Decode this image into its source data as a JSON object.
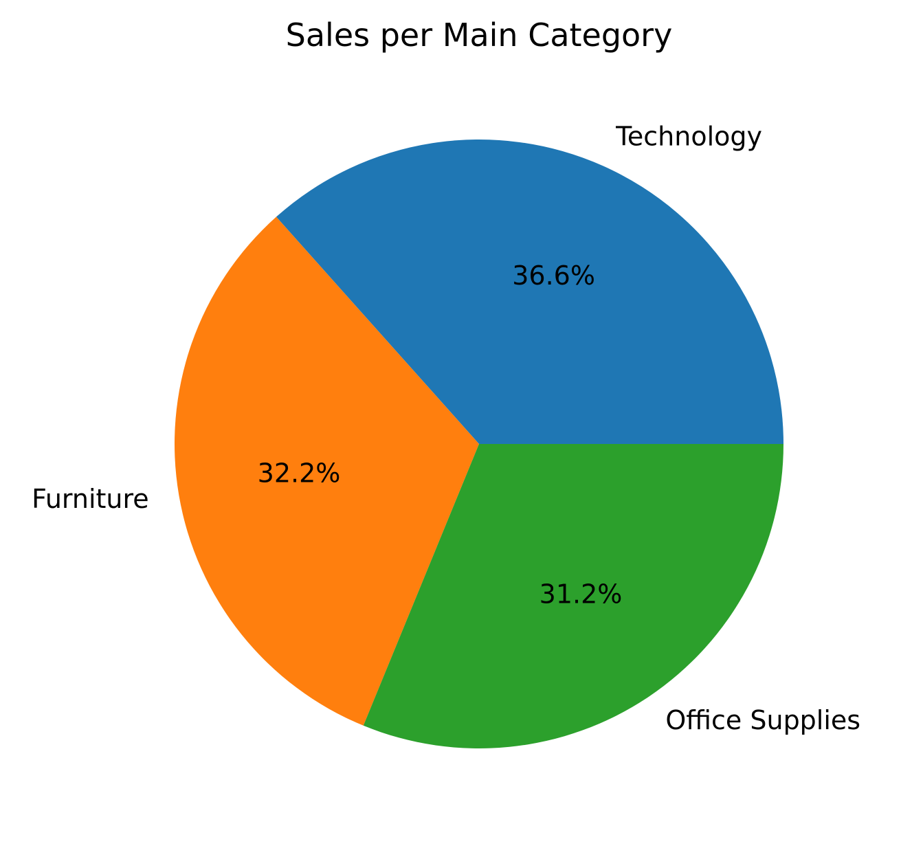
{
  "chart_data": {
    "type": "pie",
    "title": "Sales per Main Category",
    "start_angle_deg": 0,
    "direction": "counterclockwise",
    "slices": [
      {
        "label": "Technology",
        "value": 36.6,
        "pct_label": "36.6%",
        "color": "#1f77b4"
      },
      {
        "label": "Furniture",
        "value": 32.2,
        "pct_label": "32.2%",
        "color": "#ff7f0e"
      },
      {
        "label": "Office Supplies",
        "value": 31.2,
        "pct_label": "31.2%",
        "color": "#2ca02c"
      }
    ],
    "grid": false,
    "legend": "none"
  }
}
